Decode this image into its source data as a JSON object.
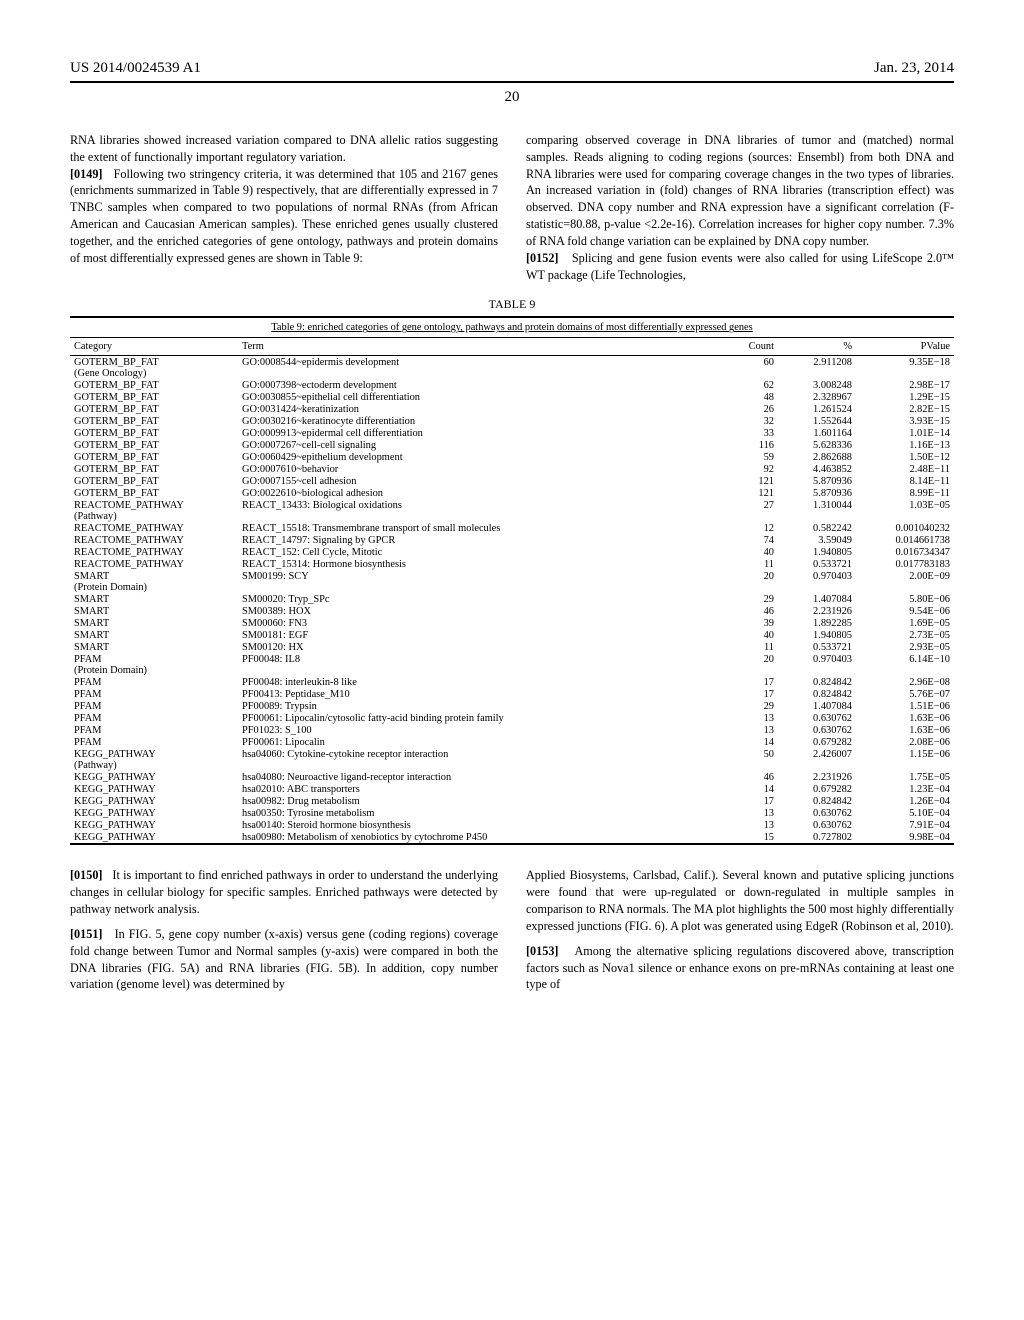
{
  "header": {
    "pub_number": "US 2014/0024539 A1",
    "pub_date": "Jan. 23, 2014",
    "page_number": "20"
  },
  "top_left_col": {
    "para1": "RNA libraries showed increased variation compared to DNA allelic ratios suggesting the extent of functionally important regulatory variation.",
    "para2_label": "[0149]",
    "para2": "Following two stringency criteria, it was determined that 105 and 2167 genes (enrichments summarized in Table 9) respectively, that are differentially expressed in 7 TNBC samples when compared to two populations of normal RNAs (from African American and Caucasian American samples). These enriched genes usually clustered together, and the enriched categories of gene ontology, pathways and protein domains of most differentially expressed genes are shown in Table 9:"
  },
  "top_right_col": {
    "para1": "comparing observed coverage in DNA libraries of tumor and (matched) normal samples. Reads aligning to coding regions (sources: Ensembl) from both DNA and RNA libraries were used for comparing coverage changes in the two types of libraries. An increased variation in (fold) changes of RNA libraries (transcription effect) was observed. DNA copy number and RNA expression have a significant correlation (F-statistic=80.88, p-value <2.2e-16). Correlation increases for higher copy number. 7.3% of RNA fold change variation can be explained by DNA copy number.",
    "para2_label": "[0152]",
    "para2": "Splicing and gene fusion events were also called for using LifeScope 2.0™ WT package (Life Technologies,"
  },
  "table": {
    "caption_top": "TABLE 9",
    "title": "Table 9: enriched categories of gene ontology, pathways and protein domains of most differentially expressed genes",
    "columns": [
      "Category",
      "Term",
      "Count",
      "%",
      "PValue"
    ],
    "rows": [
      [
        "GOTERM_BP_FAT (Gene Oncology)",
        "GO:0008544~epidermis development",
        "60",
        "2.911208",
        "9.35E−18"
      ],
      [
        "GOTERM_BP_FAT",
        "GO:0007398~ectoderm development",
        "62",
        "3.008248",
        "2.98E−17"
      ],
      [
        "GOTERM_BP_FAT",
        "GO:0030855~epithelial cell differentiation",
        "48",
        "2.328967",
        "1.29E−15"
      ],
      [
        "GOTERM_BP_FAT",
        "GO:0031424~keratinization",
        "26",
        "1.261524",
        "2.82E−15"
      ],
      [
        "GOTERM_BP_FAT",
        "GO:0030216~keratinocyte differentiation",
        "32",
        "1.552644",
        "3.93E−15"
      ],
      [
        "GOTERM_BP_FAT",
        "GO:0009913~epidermal cell differentiation",
        "33",
        "1.601164",
        "1.01E−14"
      ],
      [
        "GOTERM_BP_FAT",
        "GO:0007267~cell-cell signaling",
        "116",
        "5.628336",
        "1.16E−13"
      ],
      [
        "GOTERM_BP_FAT",
        "GO:0060429~epithelium development",
        "59",
        "2.862688",
        "1.50E−12"
      ],
      [
        "GOTERM_BP_FAT",
        "GO:0007610~behavior",
        "92",
        "4.463852",
        "2.48E−11"
      ],
      [
        "GOTERM_BP_FAT",
        "GO:0007155~cell adhesion",
        "121",
        "5.870936",
        "8.14E−11"
      ],
      [
        "GOTERM_BP_FAT",
        "GO:0022610~biological adhesion",
        "121",
        "5.870936",
        "8.99E−11"
      ],
      [
        "REACTOME_PATHWAY (Pathway)",
        "REACT_13433: Biological oxidations",
        "27",
        "1.310044",
        "1.03E−05"
      ],
      [
        "REACTOME_PATHWAY",
        "REACT_15518: Transmembrane transport of small molecules",
        "12",
        "0.582242",
        "0.001040232"
      ],
      [
        "REACTOME_PATHWAY",
        "REACT_14797: Signaling by GPCR",
        "74",
        "3.59049",
        "0.014661738"
      ],
      [
        "REACTOME_PATHWAY",
        "REACT_152: Cell Cycle, Mitotic",
        "40",
        "1.940805",
        "0.016734347"
      ],
      [
        "REACTOME_PATHWAY",
        "REACT_15314: Hormone biosynthesis",
        "11",
        "0.533721",
        "0.017783183"
      ],
      [
        "SMART (Protein Domain)",
        "SM00199: SCY",
        "20",
        "0.970403",
        "2.00E−09"
      ],
      [
        "SMART",
        "SM00020: Tryp_SPc",
        "29",
        "1.407084",
        "5.80E−06"
      ],
      [
        "SMART",
        "SM00389: HOX",
        "46",
        "2.231926",
        "9.54E−06"
      ],
      [
        "SMART",
        "SM00060: FN3",
        "39",
        "1.892285",
        "1.69E−05"
      ],
      [
        "SMART",
        "SM00181: EGF",
        "40",
        "1.940805",
        "2.73E−05"
      ],
      [
        "SMART",
        "SM00120: HX",
        "11",
        "0.533721",
        "2.93E−05"
      ],
      [
        "PFAM (Protein Domain)",
        "PF00048: IL8",
        "20",
        "0.970403",
        "6.14E−10"
      ],
      [
        "PFAM",
        "PF00048: interleukin-8 like",
        "17",
        "0.824842",
        "2.96E−08"
      ],
      [
        "PFAM",
        "PF00413: Peptidase_M10",
        "17",
        "0.824842",
        "5.76E−07"
      ],
      [
        "PFAM",
        "PF00089: Trypsin",
        "29",
        "1.407084",
        "1.51E−06"
      ],
      [
        "PFAM",
        "PF00061: Lipocalin/cytosolic fatty-acid binding protein family",
        "13",
        "0.630762",
        "1.63E−06"
      ],
      [
        "PFAM",
        "PF01023: S_100",
        "13",
        "0.630762",
        "1.63E−06"
      ],
      [
        "PFAM",
        "PF00061: Lipocalin",
        "14",
        "0.679282",
        "2.08E−06"
      ],
      [
        "KEGG_PATHWAY (Pathway)",
        "hsa04060: Cytokine-cytokine receptor interaction",
        "50",
        "2.426007",
        "1.15E−06"
      ],
      [
        "KEGG_PATHWAY",
        "hsa04080: Neuroactive ligand-receptor interaction",
        "46",
        "2.231926",
        "1.75E−05"
      ],
      [
        "KEGG_PATHWAY",
        "hsa02010: ABC transporters",
        "14",
        "0.679282",
        "1.23E−04"
      ],
      [
        "KEGG_PATHWAY",
        "hsa00982: Drug metabolism",
        "17",
        "0.824842",
        "1.26E−04"
      ],
      [
        "KEGG_PATHWAY",
        "hsa00350: Tyrosine metabolism",
        "13",
        "0.630762",
        "5.10E−04"
      ],
      [
        "KEGG_PATHWAY",
        "hsa00140: Steroid hormone biosynthesis",
        "13",
        "0.630762",
        "7.91E−04"
      ],
      [
        "KEGG_PATHWAY",
        "hsa00980: Metabolism of xenobiotics by cytochrome P450",
        "15",
        "0.727802",
        "9.98E−04"
      ]
    ]
  },
  "bot_left_col": {
    "para1_label": "[0150]",
    "para1": "It is important to find enriched pathways in order to understand the underlying changes in cellular biology for specific samples. Enriched pathways were detected by pathway network analysis.",
    "para2_label": "[0151]",
    "para2": "In FIG. 5, gene copy number (x-axis) versus gene (coding regions) coverage fold change between Tumor and Normal samples (y-axis) were compared in both the DNA libraries (FIG. 5A) and RNA libraries (FIG. 5B). In addition, copy number variation (genome level) was determined by"
  },
  "bot_right_col": {
    "para1": "Applied Biosystems, Carlsbad, Calif.). Several known and putative splicing junctions were found that were up-regulated or down-regulated in multiple samples in comparison to RNA normals. The MA plot highlights the 500 most highly differentially expressed junctions (FIG. 6). A plot was generated using EdgeR (Robinson et al, 2010).",
    "para2_label": "[0153]",
    "para2": "Among the alternative splicing regulations discovered above, transcription factors such as Nova1 silence or enhance exons on pre-mRNAs containing at least one type of"
  }
}
